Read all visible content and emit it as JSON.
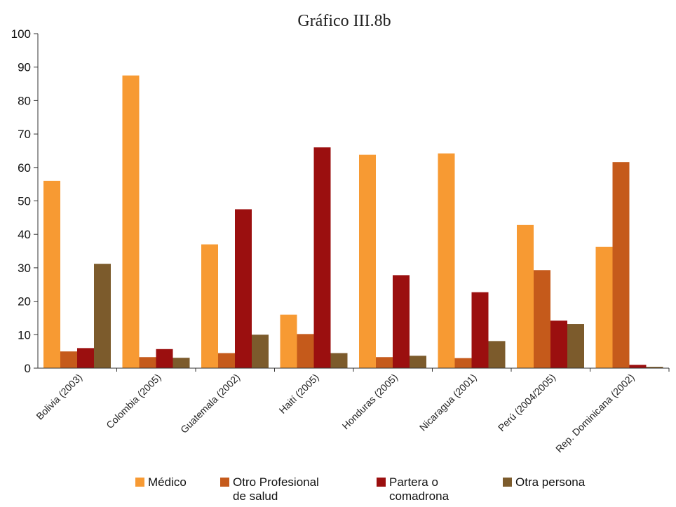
{
  "chart_data": {
    "type": "bar",
    "title": "Gráfico III.8b",
    "xlabel": "",
    "ylabel": "",
    "ylim": [
      0,
      100
    ],
    "yticks": [
      0,
      10,
      20,
      30,
      40,
      50,
      60,
      70,
      80,
      90,
      100
    ],
    "grid": false,
    "legend_position": "bottom",
    "categories": [
      "Bolivia (2003)",
      "Colombia (2005)",
      "Guatemala (2002)",
      "Haití (2005)",
      "Honduras (2005)",
      "Nicaragua (2001)",
      "Perú (2004/2005)",
      "Rep. Dominicana (2002)"
    ],
    "series": [
      {
        "name": "Médico",
        "name_lines": [
          "Médico"
        ],
        "color": "#F79A33",
        "values": [
          56,
          87.5,
          37,
          16,
          63.8,
          64.2,
          42.8,
          36.3
        ]
      },
      {
        "name": "Otro Profesional de salud",
        "name_lines": [
          "Otro Profesional",
          "de salud"
        ],
        "color": "#C55A1B",
        "values": [
          5,
          3.3,
          4.5,
          10.2,
          3.3,
          3,
          29.3,
          61.6
        ]
      },
      {
        "name": "Partera o comadrona",
        "name_lines": [
          "Partera o",
          "comadrona"
        ],
        "color": "#9B0F0F",
        "values": [
          6,
          5.7,
          47.5,
          66,
          27.8,
          22.7,
          14.2,
          1
        ]
      },
      {
        "name": "Otra persona",
        "name_lines": [
          "Otra persona"
        ],
        "color": "#7C5B2C",
        "values": [
          31.2,
          3.1,
          10,
          4.5,
          3.7,
          8.1,
          13.2,
          0.4
        ]
      }
    ]
  }
}
